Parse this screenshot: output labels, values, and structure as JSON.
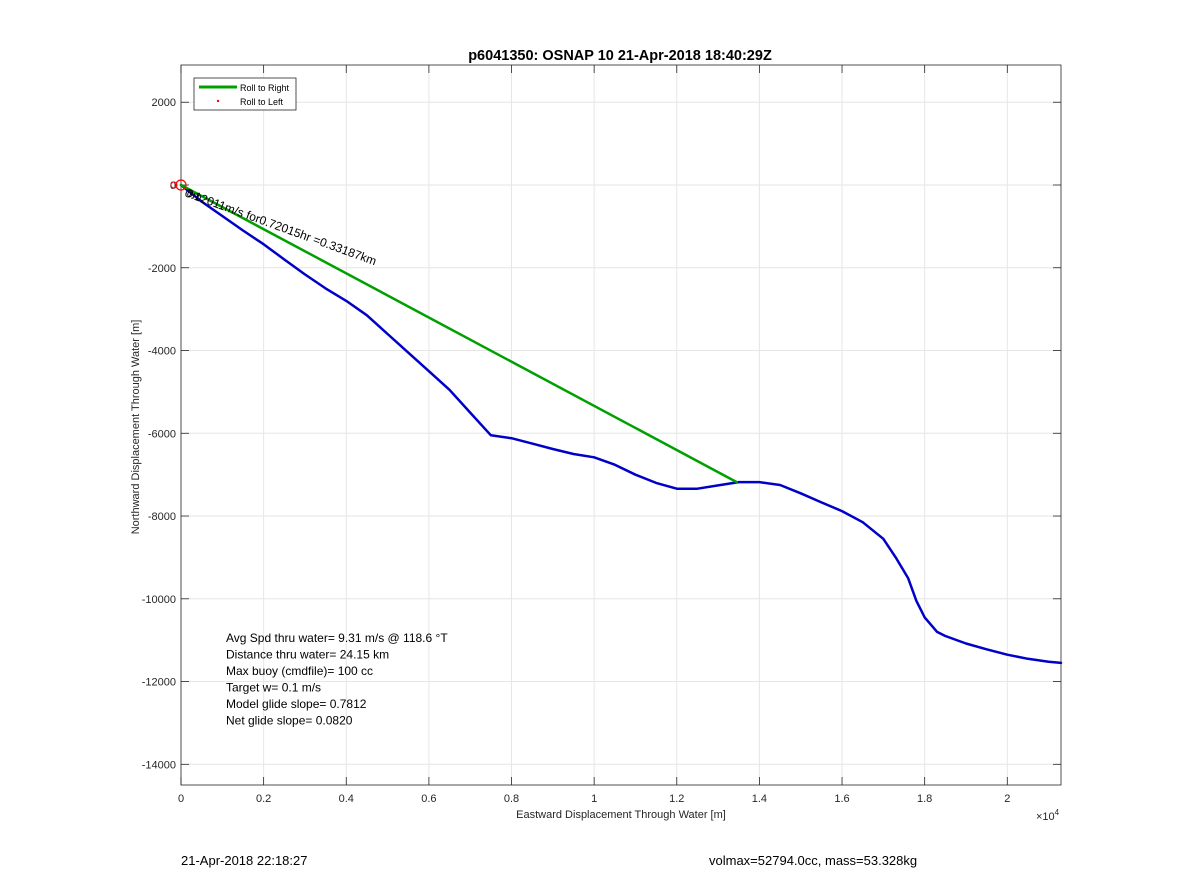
{
  "chart_data": {
    "type": "line",
    "title": "p6041350: OSNAP 10 21-Apr-2018 18:40:29Z",
    "xlabel": "Eastward Displacement Through Water [m]",
    "ylabel": "Northward Displacement Through Water [m]",
    "xlim": [
      0,
      21300
    ],
    "ylim": [
      -14500,
      2900
    ],
    "x_exponent_label": "×10",
    "x_exponent_power": "4",
    "xticks": [
      0,
      2000,
      4000,
      6000,
      8000,
      10000,
      12000,
      14000,
      16000,
      18000,
      20000
    ],
    "xtick_labels": [
      "0",
      "0.2",
      "0.4",
      "0.6",
      "0.8",
      "1",
      "1.2",
      "1.4",
      "1.6",
      "1.8",
      "2"
    ],
    "yticks": [
      2000,
      0,
      -2000,
      -4000,
      -6000,
      -8000,
      -10000,
      -12000,
      -14000
    ],
    "ytick_labels": [
      "2000",
      "0",
      "-2000",
      "-4000",
      "-6000",
      "-8000",
      "-10000",
      "-12000",
      "-14000"
    ],
    "grid": true,
    "legend_position": "top-left",
    "legend": [
      {
        "label": "Roll to Right",
        "style": "line",
        "color": "#00a000"
      },
      {
        "label": "Roll to Left",
        "style": "dot",
        "color": "#ff0000"
      }
    ],
    "series": [
      {
        "name": "Roll to Right",
        "color": "#00a000",
        "x": [
          0,
          13450
        ],
        "y": [
          0,
          -7180
        ]
      },
      {
        "color": "#0000c8",
        "x": [
          0,
          500,
          1000,
          1500,
          2000,
          2500,
          3000,
          3500,
          4000,
          4500,
          5000,
          5500,
          6000,
          6500,
          7000,
          7500,
          8000,
          8500,
          9000,
          9500,
          10000,
          10500,
          11000,
          11500,
          12000,
          12500,
          13000,
          13500,
          14000,
          14500,
          15000,
          15500,
          16000,
          16500,
          17000,
          17300,
          17600,
          17800,
          18000,
          18300,
          18500,
          19000,
          19500,
          20000,
          20500,
          21000,
          21300
        ],
        "y": [
          0,
          -400,
          -750,
          -1100,
          -1430,
          -1800,
          -2160,
          -2500,
          -2800,
          -3150,
          -3600,
          -4050,
          -4500,
          -4950,
          -5500,
          -6050,
          -6120,
          -6250,
          -6380,
          -6500,
          -6580,
          -6760,
          -7000,
          -7200,
          -7340,
          -7340,
          -7260,
          -7180,
          -7180,
          -7250,
          -7450,
          -7670,
          -7880,
          -8150,
          -8550,
          -9000,
          -9500,
          -10050,
          -10450,
          -10800,
          -10900,
          -11080,
          -11220,
          -11350,
          -11450,
          -11520,
          -11550
        ]
      }
    ],
    "markers": [
      {
        "color": "#ff0000",
        "x": 0,
        "y": 0
      }
    ],
    "annotations": {
      "segment_label": "0.12011m/s for0.72015hr =0.33187km",
      "point_label": "0m",
      "stats": [
        "Avg Spd thru water=  9.31 m/s @ 118.6 °T",
        "Distance thru water= 24.15 km",
        "Max buoy (cmdfile)= 100 cc",
        "Target w= 0.1 m/s",
        "Model glide slope= 0.7812",
        "Net glide slope= 0.0820"
      ]
    }
  },
  "footer": {
    "timestamp": "21-Apr-2018 22:18:27",
    "mass_info": "volmax=52794.0cc, mass=53.328kg"
  }
}
